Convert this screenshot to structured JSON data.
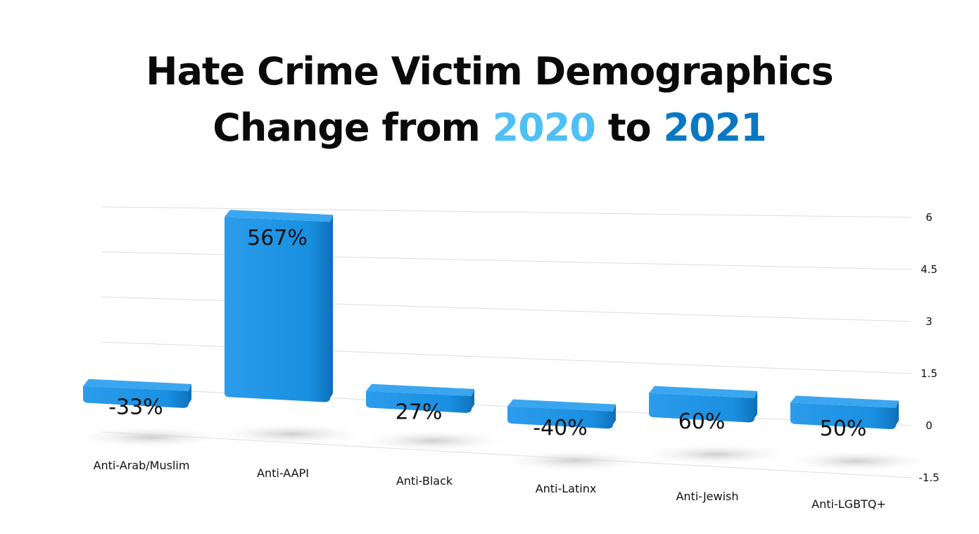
{
  "title": {
    "line1": "Hate Crime Victim Demographics",
    "line2_prefix": "Change from ",
    "year_a": "2020",
    "line2_mid": " to ",
    "year_b": "2021"
  },
  "colors": {
    "year_a": "#4ec0f5",
    "year_b": "#0a78c2",
    "bar": "#1a8fe0",
    "bar_dark": "#0d6fb8",
    "bar_light": "#3aa6f0"
  },
  "chart_data": {
    "type": "bar",
    "categories": [
      "Anti-Arab/Muslim",
      "Anti-AAPI",
      "Anti-Black",
      "Anti-Latinx",
      "Anti-Jewish",
      "Anti-LGBTQ+"
    ],
    "values": [
      -0.33,
      5.67,
      0.27,
      -0.4,
      0.6,
      0.5
    ],
    "data_labels": [
      "-33%",
      "567%",
      "27%",
      "-40%",
      "60%",
      "50%"
    ],
    "y_ticks": [
      "6",
      "4.5",
      "3",
      "1.5",
      "0",
      "-1.5"
    ],
    "y_tick_values": [
      6,
      4.5,
      3,
      1.5,
      0,
      -1.5
    ],
    "ylim": [
      -1.5,
      6
    ],
    "grid": true,
    "y_axis_side": "right",
    "style": "3d-perspective"
  }
}
